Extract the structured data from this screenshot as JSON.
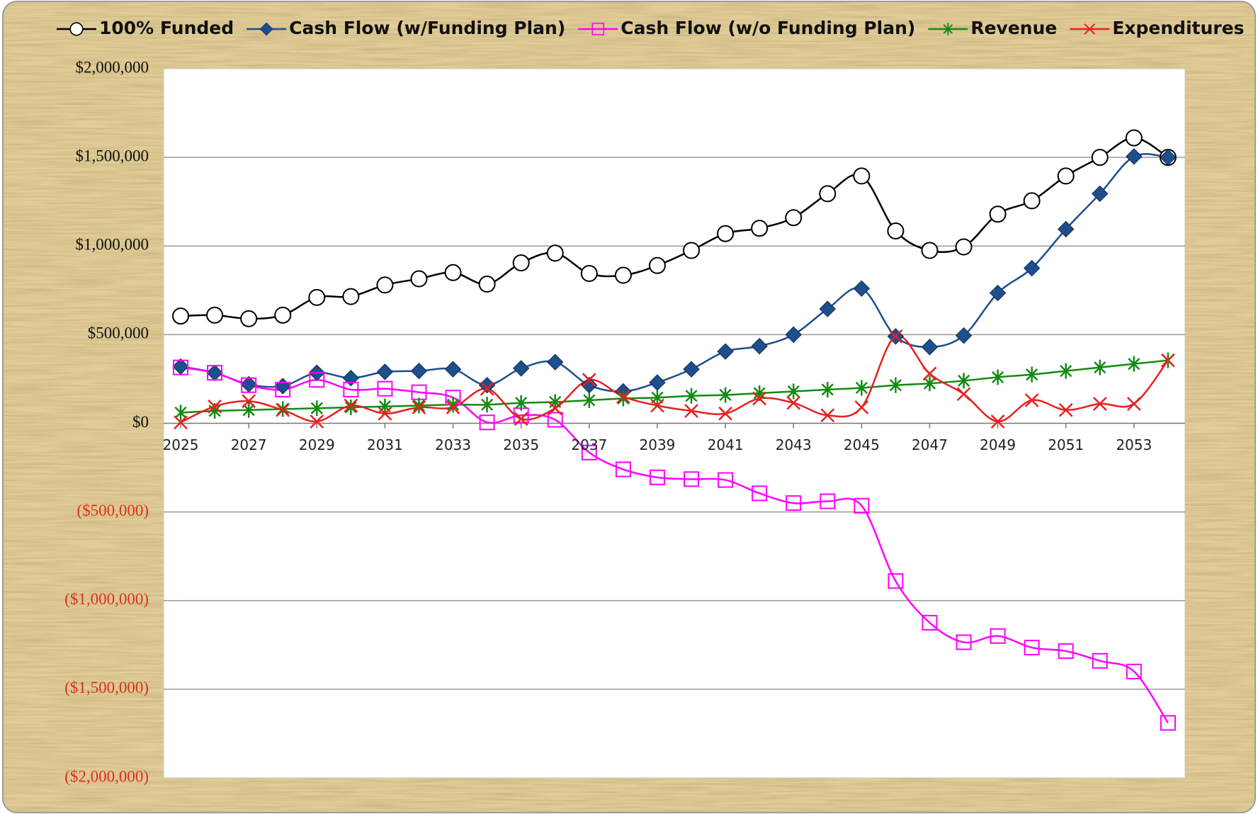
{
  "chart_data": {
    "type": "line",
    "x": [
      2025,
      2026,
      2027,
      2028,
      2029,
      2030,
      2031,
      2032,
      2033,
      2034,
      2035,
      2036,
      2037,
      2038,
      2039,
      2040,
      2041,
      2042,
      2043,
      2044,
      2045,
      2046,
      2047,
      2048,
      2049,
      2050,
      2051,
      2052,
      2053,
      2054
    ],
    "xlim": [
      2024.5,
      2054.5
    ],
    "xticks": [
      2025,
      2027,
      2029,
      2031,
      2033,
      2035,
      2037,
      2039,
      2041,
      2043,
      2045,
      2047,
      2049,
      2051,
      2053
    ],
    "ylim": [
      -2000000,
      2000000
    ],
    "yticks": [
      {
        "value": -2000000,
        "label": "($2,000,000)"
      },
      {
        "value": -1500000,
        "label": "($1,500,000)"
      },
      {
        "value": -1000000,
        "label": "($1,000,000)"
      },
      {
        "value": -500000,
        "label": "($500,000)"
      },
      {
        "value": 0,
        "label": "$0"
      },
      {
        "value": 500000,
        "label": "$500,000"
      },
      {
        "value": 1000000,
        "label": "$1,000,000"
      },
      {
        "value": 1500000,
        "label": "$1,500,000"
      },
      {
        "value": 2000000,
        "label": "$2,000,000"
      }
    ],
    "grid": true,
    "smooth": true,
    "legend": "top",
    "series": [
      {
        "name": "100% Funded",
        "color": "#000000",
        "marker": "circle",
        "values": [
          605000,
          610000,
          590000,
          610000,
          710000,
          715000,
          780000,
          815000,
          850000,
          785000,
          905000,
          960000,
          845000,
          835000,
          890000,
          975000,
          1070000,
          1100000,
          1160000,
          1295000,
          1395000,
          1085000,
          975000,
          995000,
          1180000,
          1255000,
          1395000,
          1500000,
          1610000,
          1500000
        ]
      },
      {
        "name": "Cash Flow (w/Funding Plan)",
        "color": "#1f4e8c",
        "marker": "diamond",
        "values": [
          320000,
          285000,
          220000,
          210000,
          285000,
          255000,
          290000,
          295000,
          305000,
          215000,
          310000,
          345000,
          215000,
          180000,
          230000,
          305000,
          405000,
          435000,
          500000,
          645000,
          760000,
          490000,
          430000,
          495000,
          735000,
          875000,
          1095000,
          1295000,
          1505000,
          1500000
        ]
      },
      {
        "name": "Cash Flow (w/o Funding Plan)",
        "color": "#ff00ff",
        "marker": "square",
        "values": [
          315000,
          285000,
          215000,
          190000,
          245000,
          190000,
          195000,
          175000,
          145000,
          5000,
          45000,
          20000,
          -165000,
          -260000,
          -305000,
          -315000,
          -320000,
          -395000,
          -450000,
          -440000,
          -465000,
          -890000,
          -1125000,
          -1235000,
          -1200000,
          -1265000,
          -1285000,
          -1340000,
          -1400000,
          -1690000
        ]
      },
      {
        "name": "Revenue",
        "color": "#138a13",
        "marker": "asterisk",
        "values": [
          60000,
          70000,
          75000,
          80000,
          85000,
          90000,
          95000,
          100000,
          105000,
          105000,
          115000,
          120000,
          130000,
          140000,
          145000,
          155000,
          160000,
          170000,
          180000,
          190000,
          200000,
          215000,
          225000,
          240000,
          260000,
          275000,
          295000,
          315000,
          335000,
          355000
        ]
      },
      {
        "name": "Expenditures",
        "color": "#e82020",
        "marker": "cross",
        "values": [
          5000,
          95000,
          125000,
          75000,
          10000,
          100000,
          55000,
          90000,
          90000,
          195000,
          25000,
          85000,
          245000,
          150000,
          100000,
          70000,
          55000,
          140000,
          115000,
          45000,
          90000,
          490000,
          280000,
          165000,
          10000,
          130000,
          75000,
          110000,
          110000,
          355000
        ]
      }
    ]
  }
}
